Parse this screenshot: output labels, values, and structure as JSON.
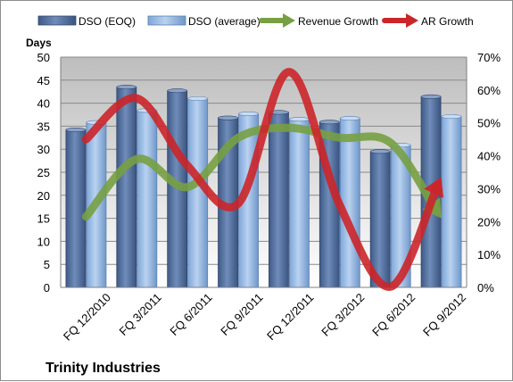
{
  "chart_data": {
    "type": "bar",
    "title": "Trinity Industries",
    "y_axis_label": "Days",
    "categories": [
      "FQ 12/2010",
      "FQ 3/2011",
      "FQ 6/2011",
      "FQ 9/2011",
      "FQ 12/2011",
      "FQ 3/2012",
      "FQ 6/2012",
      "FQ 9/2012"
    ],
    "left_axis": {
      "min": 0,
      "max": 50,
      "step": 5,
      "ticks": [
        "0",
        "5",
        "10",
        "15",
        "20",
        "25",
        "30",
        "35",
        "40",
        "45",
        "50"
      ]
    },
    "right_axis": {
      "min": 0,
      "max": 70,
      "step": 10,
      "unit": "%",
      "ticks": [
        "0%",
        "10%",
        "20%",
        "30%",
        "40%",
        "50%",
        "60%",
        "70%"
      ]
    },
    "series": [
      {
        "name": "DSO (EOQ)",
        "type": "bar",
        "axis": "left",
        "color": "#4a6591",
        "values": [
          34.2,
          43.5,
          42.7,
          36.8,
          38.0,
          35.9,
          29.5,
          41.4
        ]
      },
      {
        "name": "DSO (average)",
        "type": "bar",
        "axis": "left",
        "color": "#8fb4e3",
        "values": [
          35.8,
          38.4,
          41.0,
          37.7,
          36.5,
          36.7,
          30.9,
          37.1
        ]
      },
      {
        "name": "Revenue Growth",
        "type": "line",
        "axis": "right",
        "color": "#77a042",
        "values": [
          21.5,
          39.0,
          30.5,
          45.5,
          48.5,
          45.5,
          44.0,
          21.0
        ]
      },
      {
        "name": "AR Growth",
        "type": "line",
        "axis": "right",
        "color": "#cc2529",
        "values": [
          45.0,
          57.5,
          37.0,
          25.5,
          65.5,
          25.0,
          0.2,
          33.5
        ]
      }
    ],
    "legend_position": "top",
    "grid": true,
    "plot_background": "gradient-gray"
  }
}
